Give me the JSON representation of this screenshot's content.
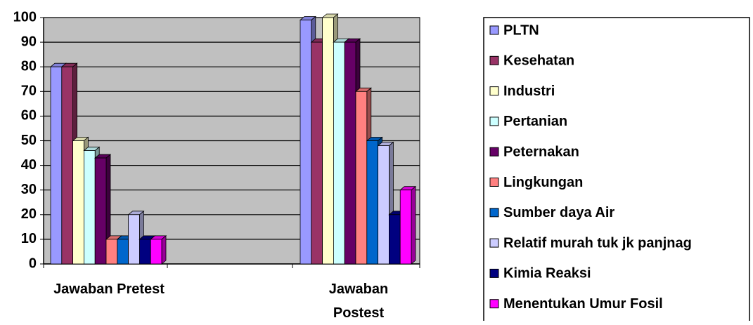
{
  "chart_data": {
    "type": "bar3d",
    "categories": [
      "Jawaban Pretest",
      "Jawaban Postest"
    ],
    "series": [
      {
        "name": "PLTN",
        "color": "#9999ff",
        "values": [
          80,
          99
        ]
      },
      {
        "name": "Kesehatan",
        "color": "#993366",
        "values": [
          80,
          90
        ]
      },
      {
        "name": "Industri",
        "color": "#ffffcc",
        "values": [
          50,
          100
        ]
      },
      {
        "name": "Pertanian",
        "color": "#ccffff",
        "values": [
          46,
          90
        ]
      },
      {
        "name": "Peternakan",
        "color": "#660066",
        "values": [
          43,
          90
        ]
      },
      {
        "name": "Lingkungan",
        "color": "#ff8080",
        "values": [
          10,
          70
        ]
      },
      {
        "name": "Sumber daya Air",
        "color": "#0066cc",
        "values": [
          10,
          50
        ]
      },
      {
        "name": "Relatif murah tuk jk panjnag",
        "color": "#ccccff",
        "values": [
          20,
          48
        ]
      },
      {
        "name": "Kimia Reaksi",
        "color": "#000080",
        "values": [
          10,
          20
        ]
      },
      {
        "name": "Menentukan Umur Fosil",
        "color": "#ff00ff",
        "values": [
          10,
          30
        ]
      }
    ],
    "ylim": [
      0,
      100
    ],
    "yticks": [
      0,
      10,
      20,
      30,
      40,
      50,
      60,
      70,
      80,
      90,
      100
    ],
    "grid": true,
    "legend": "right"
  }
}
